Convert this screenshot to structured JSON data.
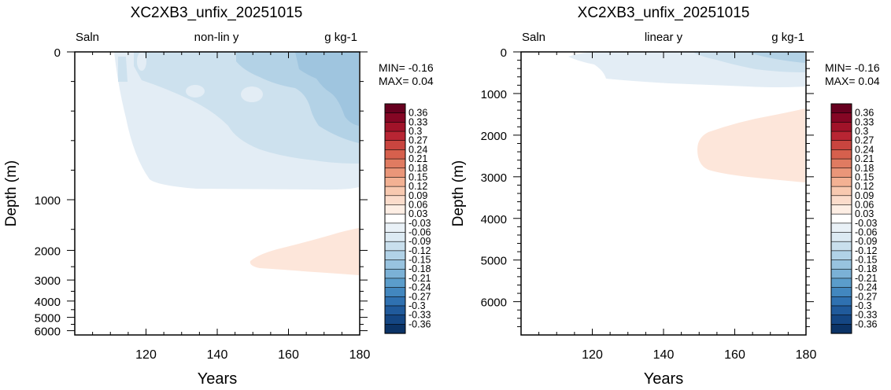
{
  "chart_data": [
    {
      "type": "heatmap",
      "title": "XC2XB3_unfix_20251015",
      "top_left_label": "Saln",
      "top_center_label": "non-lin y",
      "top_right_label": "g kg-1",
      "xlabel": "Years",
      "ylabel": "Depth (m)",
      "xlim": [
        100,
        180
      ],
      "x_ticks": [
        120,
        140,
        160,
        180
      ],
      "y_scale": "non-linear",
      "y_ticks": [
        0,
        1000,
        2000,
        3000,
        4000,
        5000,
        6000
      ],
      "y_tick_labels": [
        "0",
        "1000",
        "2000",
        "3000",
        "4000",
        "5000",
        "6000"
      ],
      "min_text": "MIN= -0.16",
      "max_text": "MAX=  0.04",
      "contour_regions": [
        {
          "level": -0.03,
          "description": "light blue anomaly from surface to ~900 m, years ~110-180"
        },
        {
          "level": -0.06,
          "description": "surface to ~600 m, years ~125-180"
        },
        {
          "level": -0.09,
          "description": "surface to ~400 m, years ~160-180"
        },
        {
          "level": -0.12,
          "description": "surface patches, years ~170-180"
        },
        {
          "level": 0.03,
          "description": "light orange anomaly ~1500-3000 m, years ~150-180"
        }
      ]
    },
    {
      "type": "heatmap",
      "title": "XC2XB3_unfix_20251015",
      "top_left_label": "Saln",
      "top_center_label": "linear y",
      "top_right_label": "g kg-1",
      "xlabel": "Years",
      "ylabel": "Depth (m)",
      "xlim": [
        100,
        180
      ],
      "x_ticks": [
        120,
        140,
        160,
        180
      ],
      "y_scale": "linear",
      "ylim": [
        0,
        6800
      ],
      "y_ticks": [
        0,
        1000,
        2000,
        3000,
        4000,
        5000,
        6000
      ],
      "y_tick_labels": [
        "0",
        "1000",
        "2000",
        "3000",
        "4000",
        "5000",
        "6000"
      ],
      "min_text": "MIN= -0.16",
      "max_text": "MAX=  0.04",
      "contour_regions": [
        {
          "level": -0.03,
          "description": "light blue anomaly surface to ~900 m"
        },
        {
          "level": -0.06,
          "description": "surface to ~500 m, years ~150-180"
        },
        {
          "level": -0.09,
          "description": "surface to ~200 m, years ~165-180"
        },
        {
          "level": 0.03,
          "description": "light orange anomaly ~1400-3100 m, years ~150-180"
        }
      ]
    }
  ],
  "colorbar": {
    "labels": [
      "0.36",
      "0.33",
      "0.3",
      "0.27",
      "0.24",
      "0.21",
      "0.18",
      "0.15",
      "0.12",
      "0.09",
      "0.06",
      "0.03",
      "-0.03",
      "-0.06",
      "-0.09",
      "-0.12",
      "-0.15",
      "-0.18",
      "-0.21",
      "-0.24",
      "-0.27",
      "-0.3",
      "-0.33",
      "-0.36"
    ],
    "colors": [
      "#67001f",
      "#850624",
      "#a11329",
      "#b82533",
      "#c9453f",
      "#d6604d",
      "#e07b61",
      "#ea9679",
      "#f3b193",
      "#f8c9b0",
      "#fbdccb",
      "#fdeee4",
      "#ffffff",
      "#e9f1f7",
      "#dceaf3",
      "#c9dfed",
      "#b1d2e7",
      "#98c3df",
      "#7bb1d6",
      "#5b9dcb",
      "#4287bf",
      "#2f71b1",
      "#205a9b",
      "#144683",
      "#0b3366"
    ]
  },
  "colors": {
    "neg_1": "#e3edf5",
    "neg_2": "#cde1ee",
    "neg_3": "#b3d2e6",
    "neg_4": "#9fc5df",
    "pos_1": "#fde6da"
  }
}
